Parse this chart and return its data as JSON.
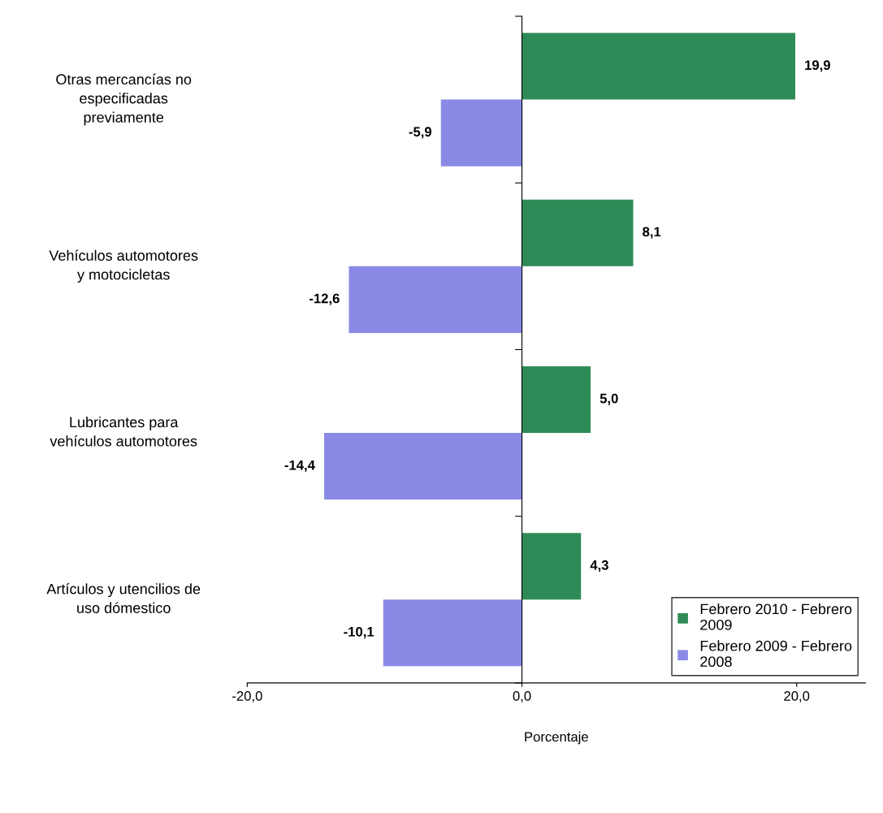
{
  "chart_data": {
    "type": "bar",
    "orientation": "horizontal",
    "xlabel": "Porcentaje",
    "categories": [
      "Otras mercancías no\nespecificadas\npreviamente",
      "Vehículos automotores\ny motocicletas",
      "Lubricantes para\nvehículos automotores",
      "Artículos y utencilios de\nuso dómestico"
    ],
    "series": [
      {
        "name": "Febrero 2010 - Febrero\n2009",
        "color": "#2e8b57",
        "values": [
          19.9,
          8.1,
          5.0,
          4.3
        ],
        "value_labels": [
          "19,9",
          "8,1",
          "5,0",
          "4,3"
        ]
      },
      {
        "name": "Febrero 2009 - Febrero\n2008",
        "color": "#8a8ae6",
        "values": [
          -5.9,
          -12.6,
          -14.4,
          -10.1
        ],
        "value_labels": [
          "-5,9",
          "-12,6",
          "-14,4",
          "-10,1"
        ]
      }
    ],
    "xlim": [
      -20,
      25
    ],
    "xticks": [
      {
        "value": -20,
        "label": "-20,0"
      },
      {
        "value": 0,
        "label": "0,0"
      },
      {
        "value": 20,
        "label": "20,0"
      }
    ],
    "legend": "bottom right"
  }
}
